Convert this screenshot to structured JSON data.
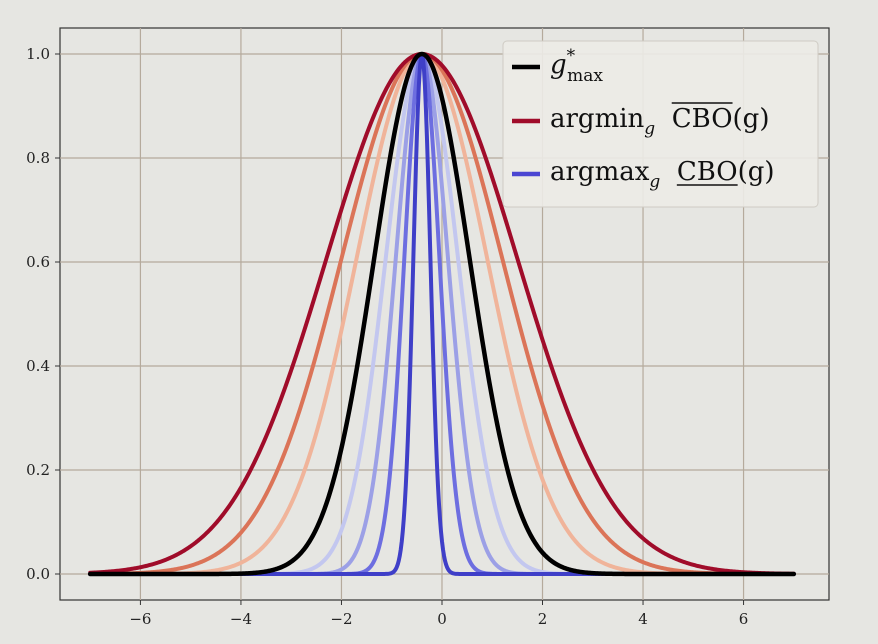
{
  "chart_data": {
    "type": "line",
    "title": "",
    "xlabel": "",
    "ylabel": "",
    "xlim": [
      -7.6,
      7.7
    ],
    "ylim": [
      -0.05,
      1.05
    ],
    "grid": true,
    "legend_placement": "top-right",
    "x_ticks": [
      -6,
      -4,
      -2,
      0,
      2,
      4,
      6
    ],
    "x_tick_labels": [
      "−6",
      "−4",
      "−2",
      "0",
      "2",
      "4",
      "6"
    ],
    "y_ticks": [
      0.0,
      0.2,
      0.4,
      0.6,
      0.8,
      1.0
    ],
    "y_tick_labels": [
      "0.0",
      "0.2",
      "0.4",
      "0.6",
      "0.8",
      "1.0"
    ],
    "x_range": [
      -7,
      7
    ],
    "legend": [
      {
        "id": "gmax",
        "base": "g",
        "sup": "*",
        "sub": "max",
        "color": "#000000"
      },
      {
        "id": "argmin",
        "base": "argmin",
        "sub": "g",
        "term": "CBO",
        "arg": "(g)",
        "bar": "over",
        "color": "#a00c2a"
      },
      {
        "id": "argmax",
        "base": "argmax",
        "sub": "g",
        "term": "CBO",
        "arg": "(g)",
        "bar": "under",
        "color": "#4b46d2"
      }
    ],
    "series": [
      {
        "color": "#f0b49a",
        "center": -0.4,
        "sigma": 1.3,
        "width": 4
      },
      {
        "color": "#db7458",
        "center": -0.4,
        "sigma": 1.6,
        "width": 4
      },
      {
        "color": "#a00c2a",
        "center": -0.4,
        "sigma": 1.9,
        "width": 4
      },
      {
        "color": "#c3c7ef",
        "center": -0.4,
        "sigma": 0.72,
        "width": 4
      },
      {
        "color": "#9ca0e6",
        "center": -0.4,
        "sigma": 0.52,
        "width": 4
      },
      {
        "color": "#6d6ee0",
        "center": -0.4,
        "sigma": 0.35,
        "width": 4
      },
      {
        "color": "#3f3fc8",
        "center": -0.4,
        "sigma": 0.17,
        "width": 4
      },
      {
        "name": "g*max",
        "color": "#000000",
        "center": -0.4,
        "sigma": 0.95,
        "width": 4.5
      }
    ]
  }
}
